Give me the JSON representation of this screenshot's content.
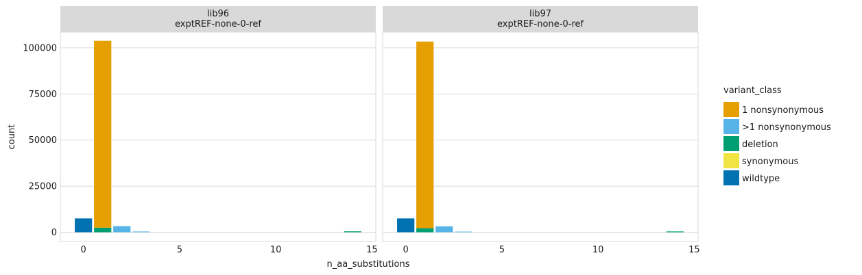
{
  "chart_data": {
    "type": "bar",
    "stacked": true,
    "facet_by": "library",
    "xlabel": "n_aa_substitutions",
    "ylabel": "count",
    "xlim": [
      -1.2,
      15.2
    ],
    "ylim": [
      -5000,
      108500
    ],
    "xticks": [
      0,
      5,
      10,
      15
    ],
    "yticks": [
      0,
      25000,
      50000,
      75000,
      100000
    ],
    "grid": true,
    "legend": {
      "title": "variant_class",
      "position": "right",
      "entries": [
        {
          "name": "1 nonsynonymous",
          "color": "#E69F00"
        },
        {
          "name": ">1 nonsynonymous",
          "color": "#56B4E9"
        },
        {
          "name": "deletion",
          "color": "#009E73"
        },
        {
          "name": "synonymous",
          "color": "#F0E442"
        },
        {
          "name": "wildtype",
          "color": "#0072B2"
        }
      ]
    },
    "stack_order": [
      "1 nonsynonymous",
      ">1 nonsynonymous",
      "deletion",
      "synonymous",
      "wildtype"
    ],
    "panels": [
      {
        "strip": [
          "lib96",
          "exptREF-none-0-ref"
        ],
        "data": [
          {
            "x": 0,
            "class": "wildtype",
            "value": 7500
          },
          {
            "x": 1,
            "class": "deletion",
            "value": 2500
          },
          {
            "x": 1,
            "class": "1 nonsynonymous",
            "value": 101300
          },
          {
            "x": 2,
            "class": ">1 nonsynonymous",
            "value": 3300
          },
          {
            "x": 3,
            "class": ">1 nonsynonymous",
            "value": 400
          },
          {
            "x": 14,
            "class": "deletion",
            "value": 500
          }
        ]
      },
      {
        "strip": [
          "lib97",
          "exptREF-none-0-ref"
        ],
        "data": [
          {
            "x": 0,
            "class": "wildtype",
            "value": 7500
          },
          {
            "x": 1,
            "class": "deletion",
            "value": 2200
          },
          {
            "x": 1,
            "class": "1 nonsynonymous",
            "value": 101200
          },
          {
            "x": 2,
            "class": ">1 nonsynonymous",
            "value": 3200
          },
          {
            "x": 3,
            "class": ">1 nonsynonymous",
            "value": 350
          },
          {
            "x": 14,
            "class": "deletion",
            "value": 450
          }
        ]
      }
    ]
  }
}
